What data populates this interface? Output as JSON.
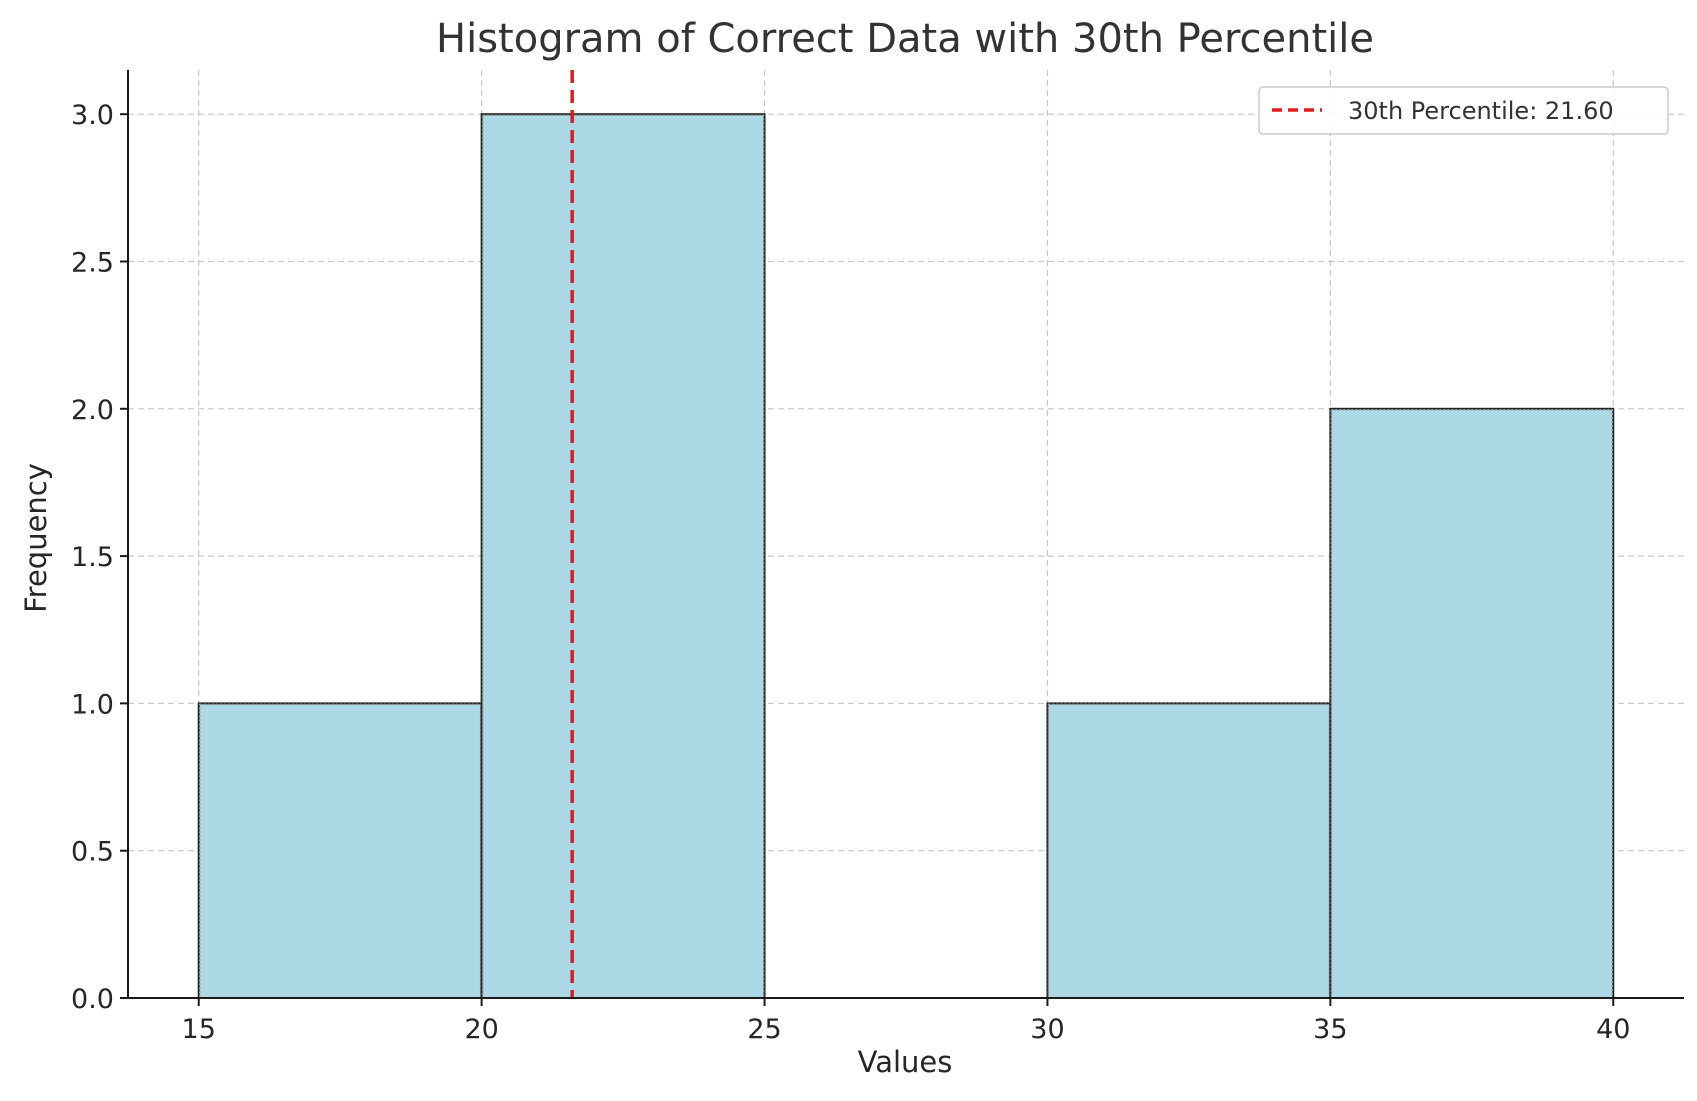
{
  "chart_data": {
    "type": "bar",
    "title": "Histogram of Correct Data with 30th Percentile",
    "xlabel": "Values",
    "ylabel": "Frequency",
    "bins": [
      {
        "start": 15,
        "end": 20,
        "count": 1
      },
      {
        "start": 20,
        "end": 25,
        "count": 3
      },
      {
        "start": 25,
        "end": 30,
        "count": 0
      },
      {
        "start": 30,
        "end": 35,
        "count": 1
      },
      {
        "start": 35,
        "end": 40,
        "count": 2
      }
    ],
    "xlim": [
      13.75,
      41.25
    ],
    "ylim": [
      0,
      3.15
    ],
    "xticks": [
      15,
      20,
      25,
      30,
      35,
      40
    ],
    "yticks": [
      "0.0",
      "0.5",
      "1.0",
      "1.5",
      "2.0",
      "2.5",
      "3.0"
    ],
    "reference_line": {
      "x": 21.6,
      "label": "30th Percentile: 21.60",
      "color": "#e31a1c",
      "style": "dashed"
    },
    "bar_color": "#add8e6",
    "grid": true,
    "legend_position": "top-right"
  }
}
